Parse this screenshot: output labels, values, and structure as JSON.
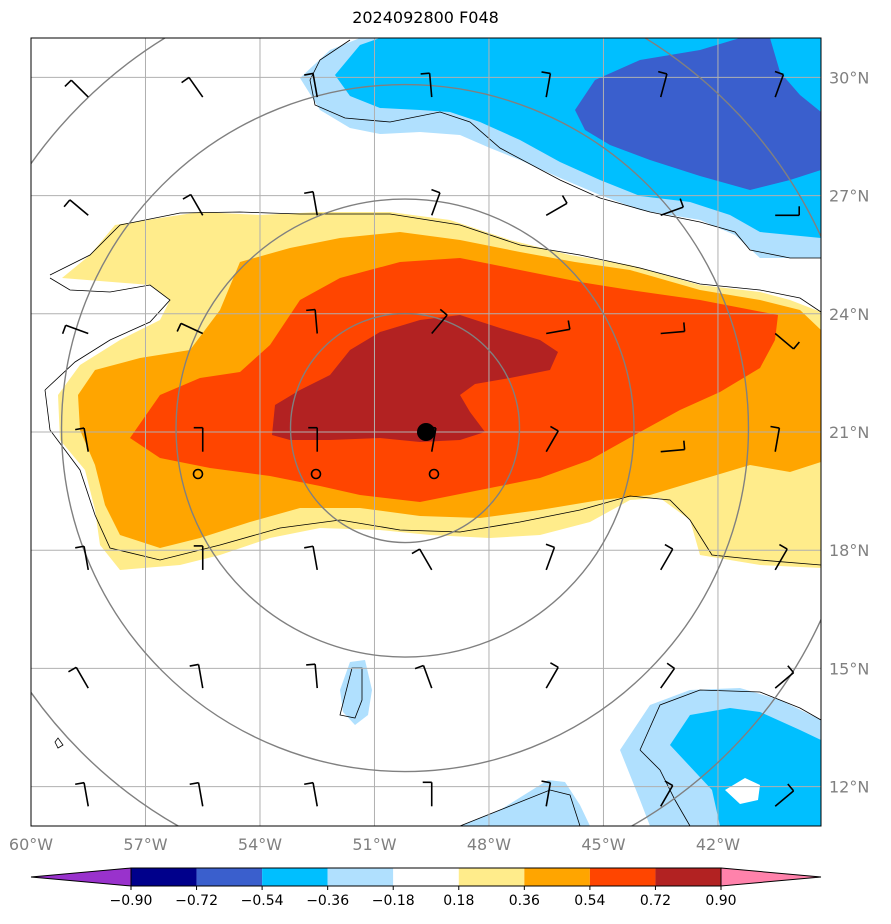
{
  "title": "2024092800 F048",
  "map": {
    "lon_range": [
      -60,
      -39.3
    ],
    "lat_range": [
      11,
      31
    ],
    "lon_ticks": [
      -60,
      -57,
      -54,
      -51,
      -48,
      -45,
      -42
    ],
    "lat_ticks": [
      12,
      15,
      18,
      21,
      24,
      27,
      30
    ],
    "lon_tick_labels": [
      "60°W",
      "57°W",
      "54°W",
      "51°W",
      "48°W",
      "45°W",
      "42°W"
    ],
    "lat_tick_labels": [
      "12°N",
      "15°N",
      "18°N",
      "21°N",
      "24°N",
      "27°N",
      "30°N"
    ],
    "center": {
      "lon": -50.2,
      "lat": 21.1
    },
    "range_ring_radius_deg": [
      3,
      6,
      9,
      12
    ],
    "grid": true
  },
  "colorbar": {
    "levels": [
      "−0.90",
      "−0.72",
      "−0.54",
      "−0.36",
      "−0.18",
      "0.18",
      "0.36",
      "0.54",
      "0.72",
      "0.90"
    ],
    "colors": [
      "#9932cc",
      "#00008b",
      "#3a5fcd",
      "#00bfff",
      "#b0e0fe",
      "#ffffff",
      "#ffec8b",
      "#ffa500",
      "#ff4500",
      "#b22222",
      "#ff82ab"
    ]
  },
  "colors": {
    "neg_strong": "#3a5fcd",
    "neg_mid": "#00bfff",
    "neg_weak": "#b0e0fe",
    "pos_weak": "#ffec8b",
    "pos_mid": "#ffa500",
    "pos_strong": "#ff4500",
    "pos_max": "#b22222",
    "grid": "#b0b0b0",
    "ring": "#808080"
  }
}
